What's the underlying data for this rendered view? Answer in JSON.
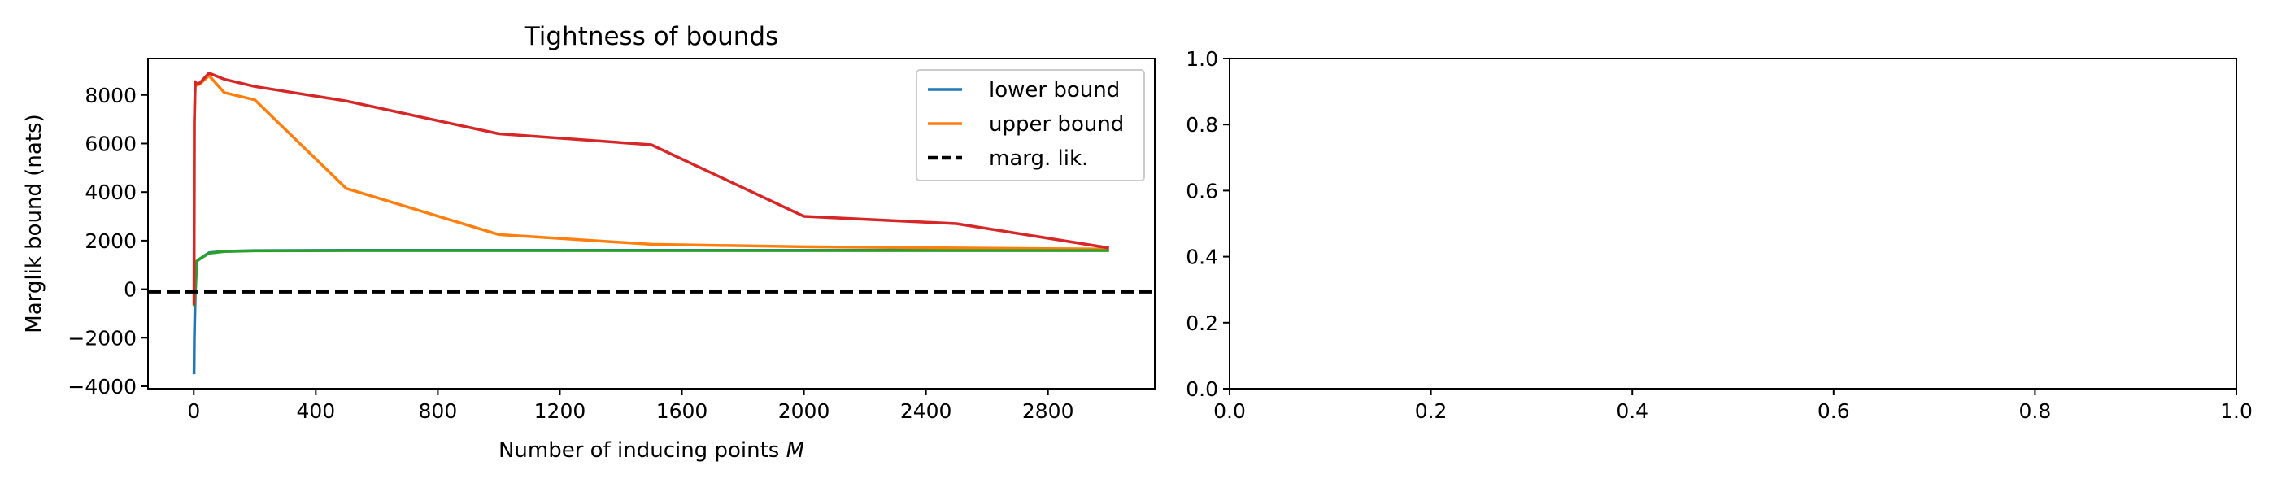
{
  "chart_data": [
    {
      "type": "line",
      "title": "Tightness of bounds",
      "xlabel": "Number of inducing points ",
      "xlabel_italic": "M",
      "ylabel": "Marglik bound (nats)",
      "xlim": [
        -150,
        3150
      ],
      "ylim": [
        -4100,
        9500
      ],
      "xticks": [
        0,
        400,
        800,
        1200,
        1600,
        2000,
        2400,
        2800
      ],
      "yticks": [
        -4000,
        -2000,
        0,
        2000,
        4000,
        6000,
        8000
      ],
      "grid": false,
      "legend_position": "top-right",
      "legend": [
        {
          "label": "lower bound",
          "color": "#1f77b4",
          "style": "solid"
        },
        {
          "label": "upper bound",
          "color": "#ff7f0e",
          "style": "solid"
        },
        {
          "label": "marg. lik.",
          "color": "#000000",
          "style": "dashed"
        }
      ],
      "series": [
        {
          "color": "#1f77b4",
          "style": "solid",
          "x": [
            1,
            2,
            5,
            10,
            20,
            50,
            100,
            200,
            500,
            1000,
            1500,
            2000,
            2500,
            3000
          ],
          "y": [
            -3500,
            -2000,
            -200,
            1150,
            1250,
            1500,
            1560,
            1590,
            1600,
            1600,
            1600,
            1600,
            1600,
            1600
          ]
        },
        {
          "color": "#ff7f0e",
          "style": "solid",
          "x": [
            1,
            2,
            5,
            10,
            20,
            50,
            100,
            200,
            500,
            1000,
            1500,
            2000,
            2500,
            3000
          ],
          "y": [
            -600,
            6800,
            8500,
            8400,
            8450,
            8800,
            8100,
            7800,
            4150,
            2250,
            1850,
            1750,
            1700,
            1650
          ]
        },
        {
          "color": "#2ca02c",
          "style": "solid",
          "x": [
            1,
            2,
            5,
            10,
            20,
            50,
            100,
            200,
            500,
            1000,
            1500,
            2000,
            2500,
            3000
          ],
          "y": [
            -700,
            -600,
            0,
            1150,
            1250,
            1480,
            1550,
            1580,
            1590,
            1590,
            1590,
            1590,
            1590,
            1590
          ]
        },
        {
          "color": "#d62728",
          "style": "solid",
          "x": [
            1,
            2,
            5,
            10,
            20,
            50,
            100,
            200,
            500,
            1000,
            1500,
            2000,
            2500,
            3000
          ],
          "y": [
            -650,
            6900,
            8550,
            8450,
            8500,
            8900,
            8650,
            8350,
            7750,
            6400,
            5950,
            3000,
            2700,
            1700
          ]
        },
        {
          "color": "#000000",
          "style": "dashed",
          "x": [
            -150,
            3150
          ],
          "y": [
            -100,
            -100
          ]
        }
      ]
    },
    {
      "type": "line",
      "title": "",
      "xlabel": "",
      "ylabel": "",
      "xlim": [
        0,
        1
      ],
      "ylim": [
        0,
        1
      ],
      "xticks": [
        0.0,
        0.2,
        0.4,
        0.6,
        0.8,
        1.0
      ],
      "yticks": [
        0.0,
        0.2,
        0.4,
        0.6,
        0.8,
        1.0
      ],
      "grid": false,
      "series": []
    }
  ]
}
